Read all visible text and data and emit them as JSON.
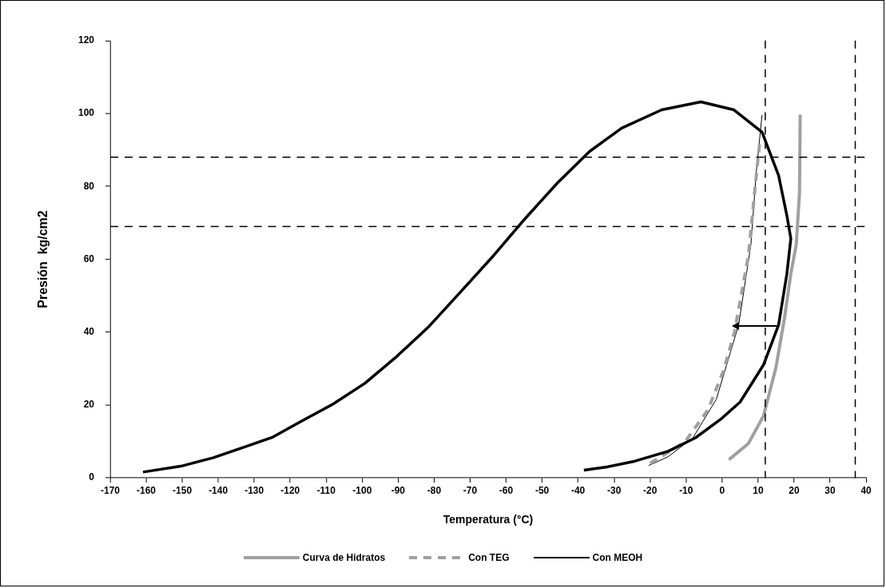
{
  "chart_data": {
    "type": "line",
    "xlabel": "Temperatura (°C)",
    "ylabel": "Presión  kg/cm2",
    "xlim": [
      -170,
      40
    ],
    "xticks": [
      -170,
      -160,
      -150,
      -140,
      -130,
      -120,
      -110,
      -100,
      -90,
      -80,
      -70,
      -60,
      -50,
      -40,
      -30,
      -20,
      -10,
      0,
      10,
      20,
      30,
      40
    ],
    "ylim": [
      0,
      120
    ],
    "yticks": [
      0,
      20,
      40,
      60,
      80,
      100,
      120
    ],
    "grid": false,
    "legend": "bottom",
    "marker": "none",
    "series": [
      {
        "color": "#000000",
        "x": [
          -160.9,
          -150.4,
          -141.5,
          -132.6,
          -124.8,
          -117,
          -108,
          -99.2,
          -90.3,
          -81.4,
          -72.5,
          -63.5,
          -54.6,
          -45.7,
          -36.8,
          -27.9,
          -16.8,
          -5.9,
          3.3,
          11.1,
          15.7,
          18,
          19.1,
          18,
          15.7,
          11.5,
          5,
          -0.5,
          -7.4,
          -15,
          -24.2,
          -32,
          -38.4
        ],
        "values": [
          1.6,
          3.2,
          5.5,
          8.5,
          11.2,
          15.5,
          20.3,
          26,
          33.4,
          41.6,
          51.2,
          61,
          71.3,
          81,
          89.6,
          96,
          101,
          103.2,
          101,
          94.9,
          83,
          72,
          65.7,
          56,
          42,
          31,
          20.8,
          16,
          11,
          7.3,
          4.6,
          3,
          2.1
        ]
      },
      {
        "name": "Curva de Hidratos",
        "color": "#a0a0a0",
        "x": [
          1.9,
          7.3,
          11.5,
          14.9,
          17.3,
          19.1,
          20.6,
          21.5,
          21.7
        ],
        "values": [
          5,
          9.4,
          17,
          30,
          43.6,
          56,
          64,
          78,
          99.7
        ]
      },
      {
        "name": "Con TEG",
        "color": "#a0a0a0",
        "line_style": "dashed",
        "x": [
          -20,
          -10.4,
          -3.9,
          0.4,
          3.4,
          5.3,
          7.3,
          8.4,
          9.5,
          10.6
        ],
        "values": [
          4,
          9.8,
          18.7,
          29.5,
          39.8,
          50,
          61,
          72,
          83,
          93.3
        ]
      },
      {
        "name": "Con MEOH",
        "color": "#000000",
        "x": [
          -20.4,
          -15,
          -8.1,
          -1.6,
          4.6,
          8,
          9.5,
          11.1
        ],
        "values": [
          3.4,
          5.8,
          11,
          21.6,
          42,
          64,
          83.9,
          99.6
        ]
      }
    ],
    "ref_lines": [
      {
        "axis": "y",
        "value": 88,
        "color": "#000000",
        "line_style": "dashed"
      },
      {
        "axis": "y",
        "value": 69,
        "color": "#000000",
        "line_style": "dashed"
      },
      {
        "axis": "x",
        "value": 12,
        "color": "#000000",
        "line_style": "dashed"
      },
      {
        "axis": "x",
        "value": 37,
        "color": "#000000",
        "line_style": "dashed"
      }
    ]
  }
}
